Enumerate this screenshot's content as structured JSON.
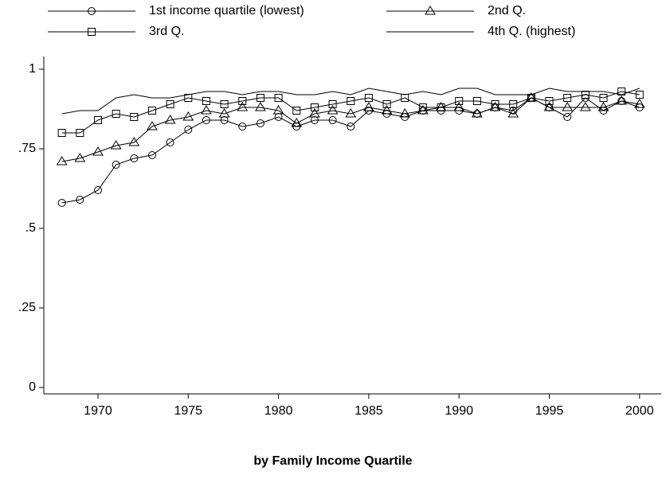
{
  "chart_data": {
    "type": "line",
    "xlabel": "by Family Income Quartile",
    "x": [
      1968,
      1969,
      1970,
      1971,
      1972,
      1973,
      1974,
      1975,
      1976,
      1977,
      1978,
      1979,
      1980,
      1981,
      1982,
      1983,
      1984,
      1985,
      1986,
      1987,
      1988,
      1989,
      1990,
      1991,
      1992,
      1993,
      1994,
      1995,
      1996,
      1997,
      1998,
      1999,
      2000
    ],
    "series": [
      {
        "name": "1st income quartile (lowest)",
        "color": "#000000",
        "marker": "circle",
        "values": [
          0.58,
          0.59,
          0.62,
          0.7,
          0.72,
          0.73,
          0.77,
          0.81,
          0.84,
          0.84,
          0.82,
          0.83,
          0.85,
          0.82,
          0.84,
          0.84,
          0.82,
          0.87,
          0.86,
          0.85,
          0.87,
          0.87,
          0.87,
          0.86,
          0.88,
          0.87,
          0.91,
          0.88,
          0.85,
          0.91,
          0.87,
          0.9,
          0.88
        ]
      },
      {
        "name": "2nd Q.",
        "color": "#000000",
        "marker": "triangle",
        "values": [
          0.71,
          0.72,
          0.74,
          0.76,
          0.77,
          0.82,
          0.84,
          0.85,
          0.87,
          0.86,
          0.88,
          0.88,
          0.87,
          0.83,
          0.86,
          0.87,
          0.86,
          0.88,
          0.87,
          0.86,
          0.87,
          0.88,
          0.88,
          0.86,
          0.88,
          0.86,
          0.91,
          0.88,
          0.88,
          0.88,
          0.88,
          0.9,
          0.89
        ]
      },
      {
        "name": "3rd Q.",
        "color": "#000000",
        "marker": "square",
        "values": [
          0.8,
          0.8,
          0.84,
          0.86,
          0.85,
          0.87,
          0.89,
          0.91,
          0.9,
          0.89,
          0.9,
          0.91,
          0.91,
          0.87,
          0.88,
          0.89,
          0.9,
          0.91,
          0.89,
          0.91,
          0.88,
          0.88,
          0.9,
          0.9,
          0.89,
          0.89,
          0.91,
          0.9,
          0.91,
          0.92,
          0.91,
          0.93,
          0.92
        ]
      },
      {
        "name": "4th Q. (highest)",
        "color": "#000000",
        "marker": "none",
        "values": [
          0.86,
          0.87,
          0.87,
          0.91,
          0.92,
          0.91,
          0.91,
          0.92,
          0.93,
          0.93,
          0.92,
          0.93,
          0.93,
          0.92,
          0.92,
          0.93,
          0.92,
          0.94,
          0.93,
          0.92,
          0.93,
          0.92,
          0.94,
          0.94,
          0.92,
          0.92,
          0.92,
          0.94,
          0.93,
          0.93,
          0.93,
          0.92,
          0.94
        ]
      }
    ],
    "xlim": [
      1967,
      2001.2
    ],
    "xticks": [
      1970,
      1975,
      1980,
      1985,
      1990,
      1995,
      2000
    ],
    "ylim": [
      -0.02,
      1.04
    ],
    "yticks": [
      0,
      {
        "value": 0.25,
        "label": ".25"
      },
      {
        "value": 0.5,
        "label": ".5"
      },
      {
        "value": 0.75,
        "label": ".75"
      },
      1
    ],
    "grid": false
  }
}
